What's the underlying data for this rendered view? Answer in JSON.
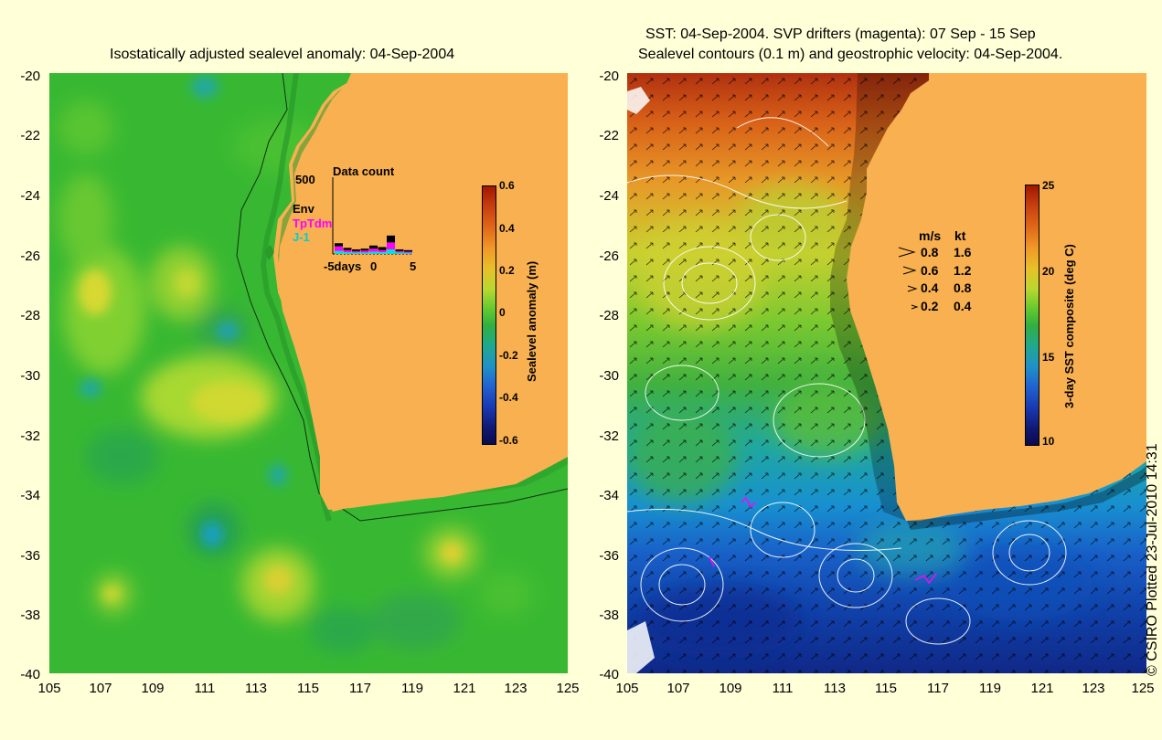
{
  "left": {
    "title": "Isostatically adjusted sealevel anomaly: 04-Sep-2004",
    "y_ticks": [
      "-20",
      "-22",
      "-24",
      "-26",
      "-28",
      "-30",
      "-32",
      "-34",
      "-36",
      "-38",
      "-40"
    ],
    "x_ticks": [
      "105",
      "107",
      "109",
      "111",
      "113",
      "115",
      "117",
      "119",
      "121",
      "123",
      "125"
    ],
    "colorbar": {
      "label": "Sealevel anomaly (m)",
      "ticks": [
        "0.6",
        "0.4",
        "0.2",
        "0",
        "-0.2",
        "-0.4",
        "-0.6"
      ]
    },
    "inset": {
      "title": "Data count",
      "ymax": "500",
      "series_labels": [
        "Env",
        "TpTdm",
        "J-1"
      ],
      "series_colors": [
        "#000000",
        "#ff00ff",
        "#00e0e0"
      ],
      "x_ticks": [
        "-5days",
        "0",
        "5"
      ],
      "bars": [
        {
          "env": 70,
          "tp": 50,
          "j1": 20
        },
        {
          "env": 40,
          "tp": 25,
          "j1": 12
        },
        {
          "env": 30,
          "tp": 18,
          "j1": 10
        },
        {
          "env": 35,
          "tp": 22,
          "j1": 10
        },
        {
          "env": 55,
          "tp": 35,
          "j1": 15
        },
        {
          "env": 45,
          "tp": 25,
          "j1": 12
        },
        {
          "env": 120,
          "tp": 75,
          "j1": 30
        },
        {
          "env": 30,
          "tp": 18,
          "j1": 10
        },
        {
          "env": 25,
          "tp": 15,
          "j1": 8
        }
      ]
    }
  },
  "right": {
    "title_line1": "SST: 04-Sep-2004. SVP drifters (magenta): 07 Sep - 15 Sep",
    "title_line2": "Sealevel contours (0.1 m) and geostrophic velocity: 04-Sep-2004.",
    "y_ticks": [
      "-20",
      "-22",
      "-24",
      "-26",
      "-28",
      "-30",
      "-32",
      "-34",
      "-36",
      "-38",
      "-40"
    ],
    "x_ticks": [
      "105",
      "107",
      "109",
      "111",
      "113",
      "115",
      "117",
      "119",
      "121",
      "123",
      "125"
    ],
    "colorbar": {
      "label": "3-day SST composite (deg C)",
      "ticks": [
        "25",
        "20",
        "15",
        "10"
      ]
    },
    "legend": {
      "header_ms": "m/s",
      "header_kt": "kt",
      "rows": [
        {
          "ms": "0.8",
          "kt": "1.6"
        },
        {
          "ms": "0.6",
          "kt": "1.2"
        },
        {
          "ms": "0.4",
          "kt": "0.8"
        },
        {
          "ms": "0.2",
          "kt": "0.4"
        }
      ]
    }
  },
  "credit": "© CSIRO Plotted 23-Jul-2010 14:31",
  "colors": {
    "land": "#f8b050",
    "background": "#ffffd8",
    "ocean_green": "#38b830"
  }
}
